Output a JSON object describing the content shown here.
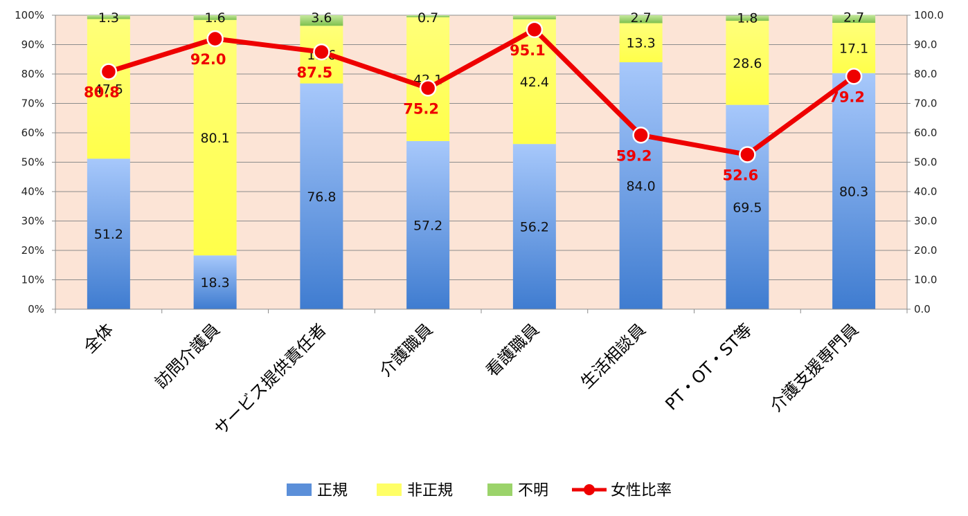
{
  "chart_data": {
    "type": "bar",
    "stacked": true,
    "categories": [
      "全体",
      "訪問介護員",
      "サービス提供責任者",
      "介護職員",
      "看護職員",
      "生活相談員",
      "PT・OT・ST等",
      "介護支援専門員"
    ],
    "series": [
      {
        "name": "正規",
        "type": "bar",
        "axis": "left",
        "color": "#5b8fd9",
        "values": [
          51.2,
          18.3,
          76.8,
          57.2,
          56.2,
          84.0,
          69.5,
          80.3
        ],
        "labels": [
          "51.2",
          "18.3",
          "76.8",
          "57.2",
          "56.2",
          "84.0",
          "69.5",
          "80.3"
        ]
      },
      {
        "name": "非正規",
        "type": "bar",
        "axis": "left",
        "color": "#ffff66",
        "values": [
          47.5,
          80.1,
          19.6,
          42.1,
          42.4,
          13.3,
          28.6,
          17.1
        ],
        "labels": [
          "47.5",
          "80.1",
          "19.6",
          "42.1",
          "42.4",
          "13.3",
          "28.6",
          "17.1"
        ]
      },
      {
        "name": "不明",
        "type": "bar",
        "axis": "left",
        "color": "#9bd36a",
        "values": [
          1.3,
          1.6,
          3.6,
          0.7,
          1.4,
          2.7,
          1.8,
          2.7
        ],
        "labels": [
          "1.3",
          "1.6",
          "3.6",
          "0.7",
          "",
          "2.7",
          "1.8",
          "2.7"
        ]
      },
      {
        "name": "女性比率",
        "type": "line",
        "axis": "right",
        "color": "#ee0000",
        "values": [
          80.8,
          92.0,
          87.5,
          75.2,
          95.1,
          59.2,
          52.6,
          79.2
        ],
        "labels": [
          "80.8",
          "92.0",
          "87.5",
          "75.2",
          "95.1",
          "59.2",
          "52.6",
          "79.2"
        ]
      }
    ],
    "left_axis": {
      "min": 0,
      "max": 100,
      "step": 10,
      "tick_labels": [
        "0%",
        "10%",
        "20%",
        "30%",
        "40%",
        "50%",
        "60%",
        "70%",
        "80%",
        "90%",
        "100%"
      ]
    },
    "right_axis": {
      "min": 0,
      "max": 100,
      "step": 10,
      "tick_labels": [
        "0.0",
        "10.0",
        "20.0",
        "30.0",
        "40.0",
        "50.0",
        "60.0",
        "70.0",
        "80.0",
        "90.0",
        "100.0"
      ]
    },
    "grid": true,
    "legend_position": "bottom",
    "plot_background": "#fce4d6"
  }
}
